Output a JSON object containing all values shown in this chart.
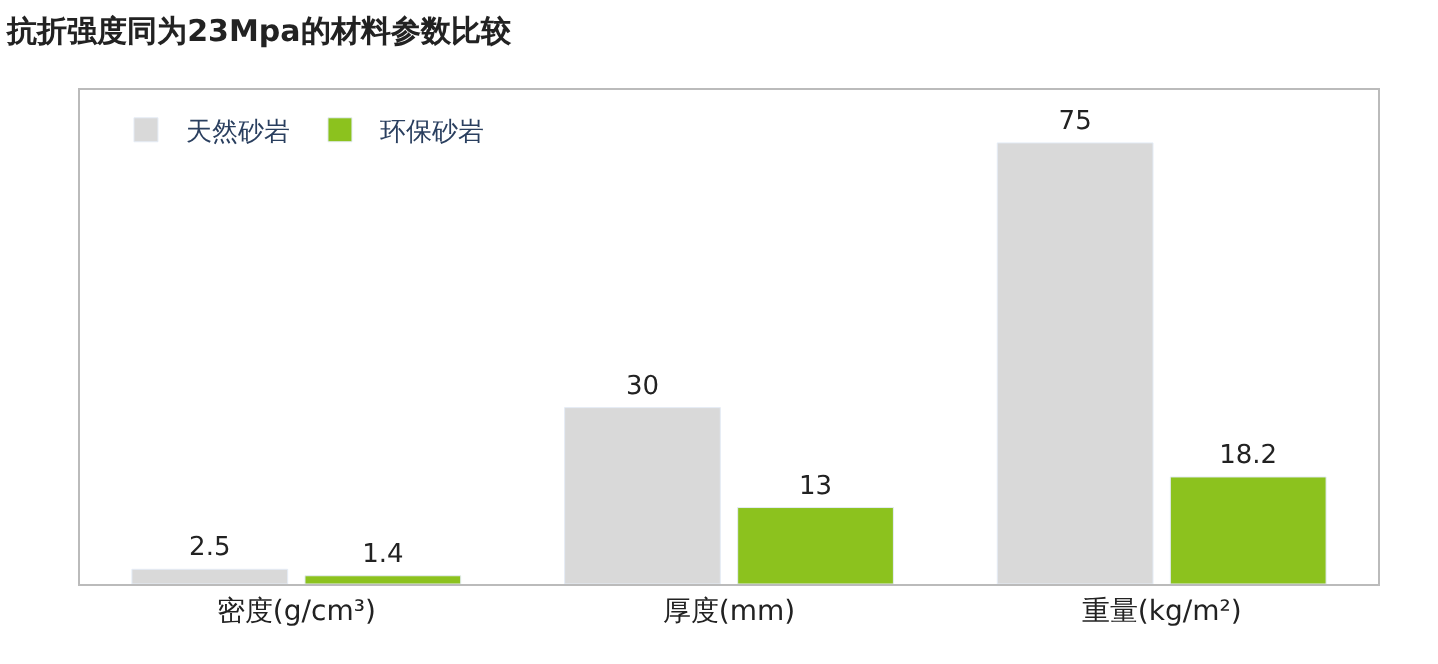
{
  "chart_data": {
    "type": "bar",
    "title": "抗折强度同为23Mpa的材料参数比较",
    "categories": [
      "密度(g/cm³)",
      "厚度(mm)",
      "重量(kg/m²)"
    ],
    "series": [
      {
        "name": "天然砂岩",
        "color": "#d9d9d9",
        "values": [
          2.5,
          30,
          75
        ]
      },
      {
        "name": "环保砂岩",
        "color": "#8cc21e",
        "values": [
          1.4,
          13,
          18.2
        ]
      }
    ],
    "data_labels": true,
    "legend": "top left",
    "tick_labels": "x"
  }
}
